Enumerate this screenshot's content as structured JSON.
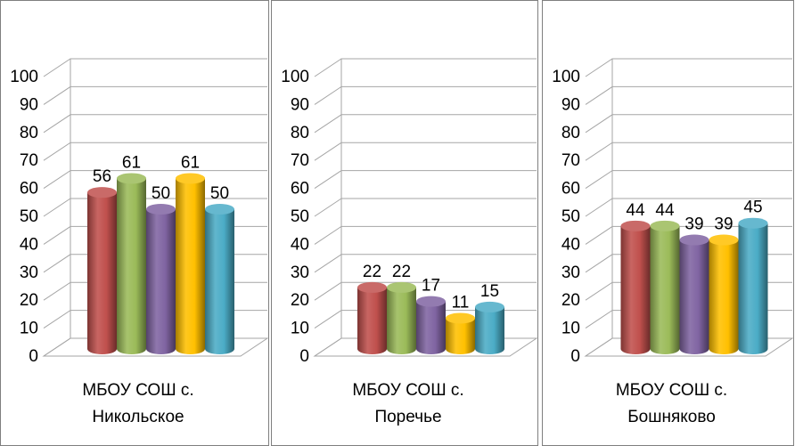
{
  "colors": {
    "series": [
      "#c0504d",
      "#9bbb59",
      "#8064a2",
      "#ffc000",
      "#4bacc6"
    ],
    "grid": "#a6a6a6",
    "panel_border": "#7f7f7f"
  },
  "chart_data": [
    {
      "type": "bar",
      "style": "3d-cylinder",
      "categories": [
        "МБОУ СОШ с. Никольское"
      ],
      "category_lines": [
        "МБОУ СОШ с.",
        "Никольское"
      ],
      "series": [
        {
          "values": [
            56
          ]
        },
        {
          "values": [
            61
          ]
        },
        {
          "values": [
            50
          ]
        },
        {
          "values": [
            61
          ]
        },
        {
          "values": [
            50
          ]
        }
      ],
      "ylim": [
        0,
        100
      ],
      "yticks": [
        0,
        10,
        20,
        30,
        40,
        50,
        60,
        70,
        80,
        90,
        100
      ],
      "grid": true,
      "legend": "none"
    },
    {
      "type": "bar",
      "style": "3d-cylinder",
      "categories": [
        "МБОУ СОШ с. Поречье"
      ],
      "category_lines": [
        "МБОУ СОШ с.",
        "Поречье"
      ],
      "series": [
        {
          "values": [
            22
          ]
        },
        {
          "values": [
            22
          ]
        },
        {
          "values": [
            17
          ]
        },
        {
          "values": [
            11
          ]
        },
        {
          "values": [
            15
          ]
        }
      ],
      "ylim": [
        0,
        100
      ],
      "yticks": [
        0,
        10,
        20,
        30,
        40,
        50,
        60,
        70,
        80,
        90,
        100
      ],
      "grid": true,
      "legend": "none"
    },
    {
      "type": "bar",
      "style": "3d-cylinder",
      "categories": [
        "МБОУ СОШ с. Бошняково"
      ],
      "category_lines": [
        "МБОУ СОШ с.",
        "Бошняково"
      ],
      "series": [
        {
          "values": [
            44
          ]
        },
        {
          "values": [
            44
          ]
        },
        {
          "values": [
            39
          ]
        },
        {
          "values": [
            39
          ]
        },
        {
          "values": [
            45
          ]
        }
      ],
      "ylim": [
        0,
        100
      ],
      "yticks": [
        0,
        10,
        20,
        30,
        40,
        50,
        60,
        70,
        80,
        90,
        100
      ],
      "grid": true,
      "legend": "none"
    }
  ]
}
